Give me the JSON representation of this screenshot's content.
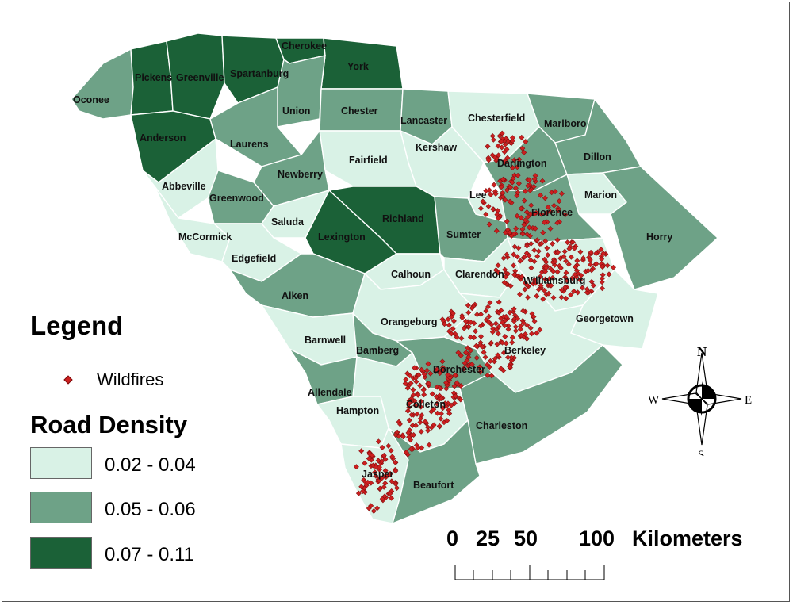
{
  "legend": {
    "title": "Legend",
    "wildfires_label": "Wildfires",
    "road_density_title": "Road Density",
    "classes": [
      {
        "label": "0.02 - 0.04",
        "color": "#d9f2e6"
      },
      {
        "label": "0.05 - 0.06",
        "color": "#6ea287"
      },
      {
        "label": "0.07 - 0.11",
        "color": "#1b6137"
      }
    ],
    "wildfire_color": "#cc1f1f"
  },
  "scale": {
    "labels": [
      "0",
      "25",
      "50",
      "100"
    ],
    "unit": "Kilometers"
  },
  "compass": {
    "n": "N",
    "s": "S",
    "e": "E",
    "w": "W"
  },
  "counties": [
    {
      "name": "Oconee",
      "class": 1
    },
    {
      "name": "Pickens",
      "class": 2
    },
    {
      "name": "Greenville",
      "class": 2
    },
    {
      "name": "Spartanburg",
      "class": 2
    },
    {
      "name": "Cherokee",
      "class": 2
    },
    {
      "name": "York",
      "class": 2
    },
    {
      "name": "Anderson",
      "class": 2
    },
    {
      "name": "Union",
      "class": 1
    },
    {
      "name": "Chester",
      "class": 1
    },
    {
      "name": "Lancaster",
      "class": 1
    },
    {
      "name": "Chesterfield",
      "class": 0
    },
    {
      "name": "Marlboro",
      "class": 1
    },
    {
      "name": "Laurens",
      "class": 1
    },
    {
      "name": "Fairfield",
      "class": 0
    },
    {
      "name": "Kershaw",
      "class": 0
    },
    {
      "name": "Darlington",
      "class": 1
    },
    {
      "name": "Dillon",
      "class": 1
    },
    {
      "name": "Abbeville",
      "class": 0
    },
    {
      "name": "Newberry",
      "class": 1
    },
    {
      "name": "Greenwood",
      "class": 1
    },
    {
      "name": "Lee",
      "class": 0
    },
    {
      "name": "Marion",
      "class": 0
    },
    {
      "name": "Florence",
      "class": 1
    },
    {
      "name": "Richland",
      "class": 2
    },
    {
      "name": "Saluda",
      "class": 0
    },
    {
      "name": "Lexington",
      "class": 2
    },
    {
      "name": "McCormick",
      "class": 0
    },
    {
      "name": "Sumter",
      "class": 1
    },
    {
      "name": "Horry",
      "class": 1
    },
    {
      "name": "Edgefield",
      "class": 0
    },
    {
      "name": "Calhoun",
      "class": 0
    },
    {
      "name": "Clarendon",
      "class": 0
    },
    {
      "name": "Williamsburg",
      "class": 0
    },
    {
      "name": "Aiken",
      "class": 1
    },
    {
      "name": "Orangeburg",
      "class": 0
    },
    {
      "name": "Georgetown",
      "class": 0
    },
    {
      "name": "Barnwell",
      "class": 0
    },
    {
      "name": "Bamberg",
      "class": 1
    },
    {
      "name": "Berkeley",
      "class": 0
    },
    {
      "name": "Dorchester",
      "class": 1
    },
    {
      "name": "Allendale",
      "class": 1
    },
    {
      "name": "Colleton",
      "class": 0
    },
    {
      "name": "Hampton",
      "class": 0
    },
    {
      "name": "Charleston",
      "class": 1
    },
    {
      "name": "Jasper",
      "class": 0
    },
    {
      "name": "Beaufort",
      "class": 1
    }
  ]
}
